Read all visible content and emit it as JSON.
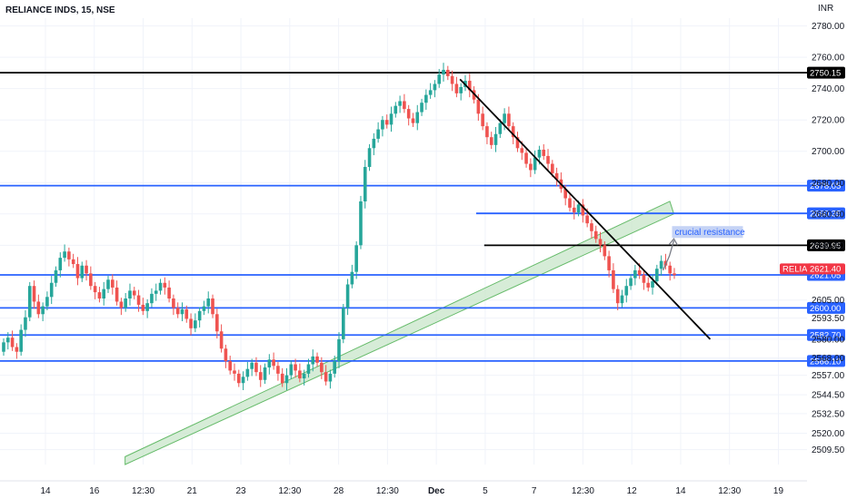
{
  "header": {
    "symbol_title": "RELIANCE INDS, 15, NSE",
    "currency": "INR"
  },
  "colors": {
    "up": "#26a69a",
    "down": "#ef5350",
    "blue_line": "#2962ff",
    "black_line": "#000000",
    "channel_fill": "#c8e6c9",
    "channel_stroke": "#66bb6a",
    "note_bg": "#c5d3f5",
    "last_tag": "#f23645",
    "arrow": "#787b86"
  },
  "chart_data": {
    "type": "candlestick",
    "ylim": [
      2500,
      2785
    ],
    "y_ticks": [
      2509.5,
      2520.0,
      2532.5,
      2544.5,
      2557.0,
      2568.0,
      2580.0,
      2593.5,
      2605.0,
      2640.0,
      2660.0,
      2680.0,
      2700.0,
      2720.0,
      2740.0,
      2760.0,
      2780.0
    ],
    "y_tick_labels": [
      "2509.50",
      "2520.00",
      "2532.50",
      "2544.50",
      "2557.00",
      "2568.00",
      "2580.00",
      "2593.50",
      "2605.00",
      "2640.00",
      "2660.00",
      "2680.00",
      "2700.00",
      "2720.00",
      "2740.00",
      "2760.00",
      "2780.00"
    ],
    "x_ticks": [
      {
        "label": "14",
        "bold": false
      },
      {
        "label": "16",
        "bold": false
      },
      {
        "label": "12:30",
        "bold": false
      },
      {
        "label": "21",
        "bold": false
      },
      {
        "label": "23",
        "bold": false
      },
      {
        "label": "12:30",
        "bold": false
      },
      {
        "label": "28",
        "bold": false
      },
      {
        "label": "12:30",
        "bold": false
      },
      {
        "label": "Dec",
        "bold": true
      },
      {
        "label": "5",
        "bold": false
      },
      {
        "label": "7",
        "bold": false
      },
      {
        "label": "12:30",
        "bold": false
      },
      {
        "label": "12",
        "bold": false
      },
      {
        "label": "14",
        "bold": false
      },
      {
        "label": "12:30",
        "bold": false
      },
      {
        "label": "19",
        "bold": false
      }
    ],
    "last_price": {
      "symbol": "RELIANCE",
      "value": "2621.40"
    },
    "horizontal_levels": [
      {
        "value": 2750.15,
        "label": "2750.15",
        "color": "black",
        "start_frac": 0.0
      },
      {
        "value": 2678.05,
        "label": "2678.05",
        "color": "blue",
        "start_frac": 0.0
      },
      {
        "value": 2660.35,
        "label": "2660.35",
        "color": "blue",
        "start_frac": 0.59
      },
      {
        "value": 2639.95,
        "label": "2639.95",
        "color": "black",
        "start_frac": 0.6
      },
      {
        "value": 2621.05,
        "label": "2621.05",
        "color": "blue",
        "start_frac": 0.0
      },
      {
        "value": 2600.0,
        "label": "2600.00",
        "color": "blue",
        "start_frac": 0.0
      },
      {
        "value": 2582.7,
        "label": "2582.70",
        "color": "blue",
        "start_frac": 0.0
      },
      {
        "value": 2566.1,
        "label": "2566.10",
        "color": "blue",
        "start_frac": 0.0
      }
    ],
    "trendline": {
      "p1": {
        "x_frac": 0.57,
        "y": 2746
      },
      "p2": {
        "x_frac": 0.88,
        "y": 2580
      }
    },
    "channel": {
      "lower_start": {
        "x_frac": 0.155,
        "y": 2500
      },
      "lower_end": {
        "x_frac": 0.835,
        "y": 2660
      },
      "upper_start": {
        "x_frac": 0.155,
        "y": 2505
      },
      "upper_end": {
        "x_frac": 0.83,
        "y": 2668
      }
    },
    "annotation": {
      "text": "crucial resistance",
      "x_frac": 0.835,
      "y": 2647
    },
    "candles_close": [
      2578,
      2581,
      2575,
      2572,
      2586,
      2594,
      2614,
      2604,
      2596,
      2601,
      2607,
      2616,
      2624,
      2632,
      2636,
      2631,
      2628,
      2619,
      2627,
      2622,
      2614,
      2610,
      2606,
      2612,
      2618,
      2613,
      2604,
      2600,
      2606,
      2611,
      2608,
      2602,
      2598,
      2603,
      2609,
      2611,
      2616,
      2613,
      2606,
      2600,
      2596,
      2599,
      2593,
      2587,
      2592,
      2598,
      2601,
      2606,
      2596,
      2585,
      2574,
      2566,
      2560,
      2558,
      2552,
      2556,
      2561,
      2565,
      2559,
      2554,
      2562,
      2567,
      2563,
      2558,
      2552,
      2557,
      2564,
      2560,
      2555,
      2558,
      2564,
      2569,
      2565,
      2559,
      2553,
      2558,
      2566,
      2580,
      2600,
      2615,
      2623,
      2640,
      2668,
      2690,
      2702,
      2708,
      2714,
      2720,
      2717,
      2724,
      2729,
      2732,
      2727,
      2721,
      2718,
      2725,
      2731,
      2736,
      2739,
      2743,
      2749,
      2752,
      2748,
      2743,
      2737,
      2741,
      2745,
      2739,
      2733,
      2724,
      2716,
      2709,
      2704,
      2711,
      2718,
      2724,
      2716,
      2709,
      2702,
      2699,
      2692,
      2688,
      2696,
      2701,
      2697,
      2692,
      2686,
      2682,
      2676,
      2670,
      2664,
      2661,
      2666,
      2659,
      2654,
      2649,
      2644,
      2640,
      2633,
      2624,
      2612,
      2603,
      2608,
      2614,
      2619,
      2624,
      2621,
      2616,
      2613,
      2617,
      2625,
      2630,
      2627,
      2622,
      2621
    ],
    "candles_open": [
      2572,
      2578,
      2581,
      2575,
      2572,
      2586,
      2594,
      2614,
      2604,
      2596,
      2601,
      2607,
      2616,
      2624,
      2632,
      2636,
      2631,
      2628,
      2619,
      2627,
      2622,
      2614,
      2610,
      2606,
      2612,
      2618,
      2613,
      2604,
      2600,
      2606,
      2611,
      2608,
      2602,
      2598,
      2603,
      2609,
      2611,
      2616,
      2613,
      2606,
      2600,
      2596,
      2599,
      2593,
      2587,
      2592,
      2598,
      2601,
      2606,
      2596,
      2585,
      2574,
      2566,
      2560,
      2558,
      2552,
      2556,
      2561,
      2565,
      2559,
      2554,
      2562,
      2567,
      2563,
      2558,
      2552,
      2557,
      2564,
      2560,
      2555,
      2558,
      2564,
      2569,
      2565,
      2559,
      2553,
      2558,
      2566,
      2580,
      2600,
      2615,
      2623,
      2640,
      2668,
      2690,
      2702,
      2708,
      2714,
      2720,
      2717,
      2724,
      2729,
      2732,
      2727,
      2721,
      2718,
      2725,
      2731,
      2736,
      2739,
      2743,
      2749,
      2752,
      2748,
      2743,
      2737,
      2741,
      2745,
      2739,
      2733,
      2724,
      2716,
      2709,
      2704,
      2711,
      2718,
      2724,
      2716,
      2709,
      2702,
      2699,
      2692,
      2688,
      2696,
      2701,
      2697,
      2692,
      2686,
      2682,
      2676,
      2670,
      2664,
      2661,
      2666,
      2659,
      2654,
      2649,
      2644,
      2640,
      2633,
      2624,
      2612,
      2603,
      2608,
      2614,
      2619,
      2624,
      2621,
      2616,
      2613,
      2617,
      2625,
      2630,
      2627,
      2622
    ]
  }
}
